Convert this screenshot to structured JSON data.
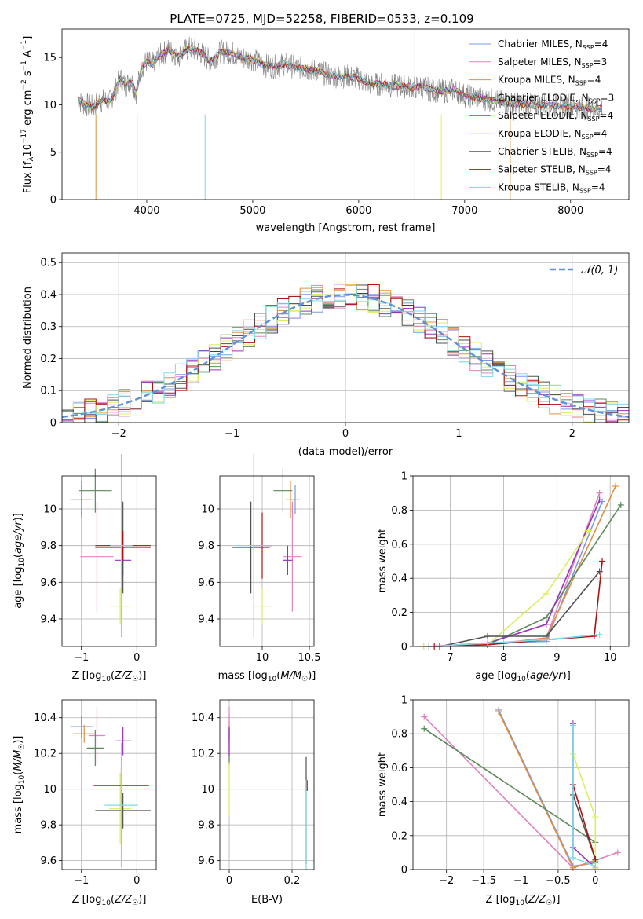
{
  "figure_title": "PLATE=0725, MJD=52258, FIBERID=0533, z=0.109",
  "chart_data": [
    {
      "id": "spectrum",
      "type": "line",
      "title": "PLATE=0725, MJD=52258, FIBERID=0533, z=0.109",
      "xlabel": "wavelength [Angstrom, rest frame]",
      "ylabel": "Flux [f_λ 10^-17 erg cm^-2 s^-1 A^-1]",
      "xlim": [
        3200,
        8550
      ],
      "ylim": [
        0,
        18
      ],
      "xticks": [
        4000,
        5000,
        6000,
        7000,
        8000
      ],
      "yticks": [
        0,
        5,
        10,
        15
      ],
      "grid": false,
      "legend_position": "top-right",
      "observed": {
        "color": "#808080",
        "points": [
          [
            3350,
            10.5
          ],
          [
            3420,
            10.0
          ],
          [
            3500,
            9.8
          ],
          [
            3550,
            10.4
          ],
          [
            3600,
            10.5
          ],
          [
            3650,
            10.3
          ],
          [
            3700,
            11.5
          ],
          [
            3750,
            12.8
          ],
          [
            3800,
            12.0
          ],
          [
            3850,
            12.7
          ],
          [
            3900,
            11.2
          ],
          [
            3950,
            14.0
          ],
          [
            4000,
            14.6
          ],
          [
            4050,
            14.2
          ],
          [
            4100,
            15.0
          ],
          [
            4200,
            15.8
          ],
          [
            4300,
            15.2
          ],
          [
            4400,
            16.0
          ],
          [
            4500,
            15.6
          ],
          [
            4600,
            14.6
          ],
          [
            4700,
            15.6
          ],
          [
            4800,
            15.5
          ],
          [
            4900,
            15.0
          ],
          [
            5000,
            14.8
          ],
          [
            5100,
            14.2
          ],
          [
            5200,
            14.0
          ],
          [
            5300,
            14.3
          ],
          [
            5400,
            14.0
          ],
          [
            5500,
            13.8
          ],
          [
            5600,
            13.6
          ],
          [
            5700,
            13.2
          ],
          [
            5800,
            13.0
          ],
          [
            5900,
            13.0
          ],
          [
            6000,
            12.8
          ],
          [
            6100,
            12.2
          ],
          [
            6200,
            12.2
          ],
          [
            6300,
            12.0
          ],
          [
            6400,
            12.0
          ],
          [
            6500,
            11.8
          ],
          [
            6600,
            11.9
          ],
          [
            6700,
            11.5
          ],
          [
            6800,
            11.4
          ],
          [
            6900,
            11.6
          ],
          [
            7000,
            11.0
          ],
          [
            7100,
            10.8
          ],
          [
            7200,
            10.6
          ],
          [
            7300,
            10.4
          ],
          [
            7400,
            10.2
          ],
          [
            7500,
            10.1
          ],
          [
            7600,
            10.0
          ],
          [
            7700,
            9.9
          ],
          [
            7800,
            10.0
          ],
          [
            7900,
            9.8
          ],
          [
            8000,
            9.9
          ],
          [
            8100,
            9.7
          ],
          [
            8200,
            9.6
          ],
          [
            8300,
            9.6
          ]
        ]
      },
      "model_colors": [
        "#7b99e0",
        "#e083c0",
        "#e09040",
        "#5c8a5c",
        "#9b30c0",
        "#d8f060",
        "#505050",
        "#b01010",
        "#80d8e8"
      ],
      "legend": [
        "Chabrier MILES, N_SSP=4",
        "Salpeter MILES, N_SSP=3",
        "Kroupa MILES, N_SSP=4",
        "Chabrier ELODIE, N_SSP=3",
        "Salpeter ELODIE, N_SSP=4",
        "Kroupa ELODIE, N_SSP=4",
        "Chabrier STELIB, N_SSP=4",
        "Salpeter STELIB, N_SSP=4",
        "Kroupa STELIB, N_SSP=4"
      ]
    },
    {
      "id": "residuals",
      "type": "bar",
      "xlabel": "(data-model)/error",
      "ylabel": "Normed distribution",
      "xlim": [
        -2.5,
        2.5
      ],
      "ylim": [
        0,
        0.53
      ],
      "xticks": [
        -2,
        -1,
        0,
        1,
        2
      ],
      "yticks": [
        0.0,
        0.1,
        0.2,
        0.3,
        0.4,
        0.5
      ],
      "grid": true,
      "legend_position": "top-right",
      "legend": [
        "N(0, 1)"
      ],
      "gaussian": {
        "mean": 0,
        "sigma": 1,
        "color": "#6090d8"
      },
      "bin_width": 0.1
    },
    {
      "id": "age-Z",
      "type": "scatter",
      "xlabel": "Z [log10(Z/Z☉)]",
      "ylabel": "age [log10(age/yr)]",
      "xlim": [
        -1.35,
        0.35
      ],
      "ylim": [
        9.25,
        10.18
      ],
      "xticks": [
        -1,
        0
      ],
      "yticks": [
        9.4,
        9.6,
        9.8,
        10.0
      ],
      "grid": true,
      "points": [
        {
          "x": -1.0,
          "y": 10.05,
          "xerr": 0.2,
          "yerr": 0.08,
          "color": "#7b99e0"
        },
        {
          "x": -0.72,
          "y": 9.74,
          "xerr": 0.3,
          "yerr": 0.3,
          "color": "#e083c0"
        },
        {
          "x": -1.0,
          "y": 10.05,
          "xerr": 0.15,
          "yerr": 0.1,
          "color": "#e09040"
        },
        {
          "x": -0.75,
          "y": 10.1,
          "xerr": 0.3,
          "yerr": 0.12,
          "color": "#5c8a5c"
        },
        {
          "x": -0.25,
          "y": 9.72,
          "xerr": 0.15,
          "yerr": 0.08,
          "color": "#9b30c0"
        },
        {
          "x": -0.3,
          "y": 9.47,
          "xerr": 0.2,
          "yerr": 0.1,
          "color": "#d8f060"
        },
        {
          "x": -0.25,
          "y": 9.79,
          "xerr": 0.5,
          "yerr": 0.25,
          "color": "#505050"
        },
        {
          "x": -0.25,
          "y": 9.8,
          "xerr": 0.5,
          "yerr": 0.08,
          "color": "#b01010"
        },
        {
          "x": -0.28,
          "y": 9.8,
          "xerr": 0.2,
          "yerr": 0.5,
          "color": "#80d8e8"
        }
      ]
    },
    {
      "id": "age-mass",
      "type": "scatter",
      "xlabel": "mass [log10(M/M☉)]",
      "ylabel": "",
      "xlim": [
        9.55,
        10.55
      ],
      "ylim": [
        9.25,
        10.18
      ],
      "xticks": [
        10.0,
        10.5
      ],
      "yticks": [
        9.4,
        9.6,
        9.8,
        10.0
      ],
      "grid": true,
      "points": [
        {
          "x": 10.35,
          "y": 10.05,
          "xerr": 0.05,
          "yerr": 0.08,
          "color": "#7b99e0"
        },
        {
          "x": 10.32,
          "y": 9.74,
          "xerr": 0.1,
          "yerr": 0.3,
          "color": "#e083c0"
        },
        {
          "x": 10.3,
          "y": 10.05,
          "xerr": 0.05,
          "yerr": 0.1,
          "color": "#e09040"
        },
        {
          "x": 10.22,
          "y": 10.1,
          "xerr": 0.1,
          "yerr": 0.12,
          "color": "#5c8a5c"
        },
        {
          "x": 10.27,
          "y": 9.72,
          "xerr": 0.05,
          "yerr": 0.08,
          "color": "#9b30c0"
        },
        {
          "x": 10.0,
          "y": 9.47,
          "xerr": 0.1,
          "yerr": 0.1,
          "color": "#d8f060"
        },
        {
          "x": 9.88,
          "y": 9.79,
          "xerr": 0.2,
          "yerr": 0.25,
          "color": "#505050"
        },
        {
          "x": 10.0,
          "y": 9.8,
          "xerr": 0.1,
          "yerr": 0.18,
          "color": "#b01010"
        },
        {
          "x": 9.91,
          "y": 9.8,
          "xerr": 0.2,
          "yerr": 0.5,
          "color": "#80d8e8"
        }
      ]
    },
    {
      "id": "weight-age",
      "type": "line",
      "xlabel": "age log10(age/yr)",
      "ylabel": "mass weight",
      "xlim": [
        6.3,
        10.35
      ],
      "ylim": [
        0,
        1.0
      ],
      "xticks": [
        7,
        8,
        9,
        10
      ],
      "yticks": [
        0.0,
        0.2,
        0.4,
        0.6,
        0.8,
        1.0
      ],
      "grid": true,
      "series": [
        {
          "color": "#7b99e0",
          "points": [
            [
              6.6,
              0.0
            ],
            [
              7.7,
              0.02
            ],
            [
              8.8,
              0.03
            ],
            [
              9.85,
              0.85
            ]
          ]
        },
        {
          "color": "#e083c0",
          "points": [
            [
              7.7,
              0.01
            ],
            [
              8.8,
              0.05
            ],
            [
              9.8,
              0.9
            ]
          ]
        },
        {
          "color": "#e09040",
          "points": [
            [
              6.5,
              0.0
            ],
            [
              7.7,
              0.01
            ],
            [
              8.8,
              0.05
            ],
            [
              10.1,
              0.94
            ]
          ]
        },
        {
          "color": "#5c8a5c",
          "points": [
            [
              7.7,
              0.01
            ],
            [
              8.8,
              0.17
            ],
            [
              10.2,
              0.83
            ]
          ]
        },
        {
          "color": "#9b30c0",
          "points": [
            [
              6.6,
              0.0
            ],
            [
              7.7,
              0.02
            ],
            [
              8.8,
              0.13
            ],
            [
              9.8,
              0.86
            ]
          ]
        },
        {
          "color": "#d8f060",
          "points": [
            [
              6.5,
              0.0
            ],
            [
              7.7,
              0.01
            ],
            [
              8.8,
              0.31
            ],
            [
              9.6,
              0.68
            ]
          ]
        },
        {
          "color": "#505050",
          "points": [
            [
              6.8,
              0.0
            ],
            [
              7.7,
              0.06
            ],
            [
              8.8,
              0.06
            ],
            [
              9.8,
              0.44
            ]
          ]
        },
        {
          "color": "#b01010",
          "points": [
            [
              6.7,
              0.0
            ],
            [
              7.7,
              0.01
            ],
            [
              8.8,
              0.04
            ],
            [
              9.7,
              0.06
            ],
            [
              9.85,
              0.5
            ]
          ]
        },
        {
          "color": "#80d8e8",
          "points": [
            [
              6.6,
              0.0
            ],
            [
              7.7,
              0.02
            ],
            [
              8.8,
              0.04
            ],
            [
              9.8,
              0.07
            ]
          ]
        }
      ]
    },
    {
      "id": "mass-Z",
      "type": "scatter",
      "xlabel": "Z [log10(Z/Z☉)]",
      "ylabel": "mass [log10(M/M☉)]",
      "xlim": [
        -1.35,
        0.35
      ],
      "ylim": [
        9.55,
        10.5
      ],
      "xticks": [
        -1,
        0
      ],
      "yticks": [
        9.6,
        9.8,
        10.0,
        10.2,
        10.4
      ],
      "grid": true,
      "points": [
        {
          "x": -1.0,
          "y": 10.35,
          "xerr": 0.2,
          "yerr": 0.06,
          "color": "#7b99e0"
        },
        {
          "x": -0.72,
          "y": 10.3,
          "xerr": 0.15,
          "yerr": 0.16,
          "color": "#e083c0"
        },
        {
          "x": -0.95,
          "y": 10.31,
          "xerr": 0.2,
          "yerr": 0.05,
          "color": "#e09040"
        },
        {
          "x": -0.75,
          "y": 10.23,
          "xerr": 0.15,
          "yerr": 0.1,
          "color": "#5c8a5c"
        },
        {
          "x": -0.25,
          "y": 10.27,
          "xerr": 0.15,
          "yerr": 0.08,
          "color": "#9b30c0"
        },
        {
          "x": -0.3,
          "y": 9.89,
          "xerr": 0.2,
          "yerr": 0.2,
          "color": "#d8f060"
        },
        {
          "x": -0.25,
          "y": 9.88,
          "xerr": 0.5,
          "yerr": 0.1,
          "color": "#505050"
        },
        {
          "x": -0.28,
          "y": 10.02,
          "xerr": 0.5,
          "yerr": 0.1,
          "color": "#b01010"
        },
        {
          "x": -0.28,
          "y": 9.91,
          "xerr": 0.3,
          "yerr": 0.35,
          "color": "#80d8e8"
        }
      ]
    },
    {
      "id": "mass-ebv",
      "type": "scatter",
      "xlabel": "E(B-V)",
      "ylabel": "",
      "xlim": [
        -0.03,
        0.27
      ],
      "ylim": [
        9.55,
        10.5
      ],
      "xticks": [
        0.0,
        0.2
      ],
      "yticks": [
        9.6,
        9.8,
        10.0,
        10.2,
        10.4
      ],
      "grid": true,
      "points": [
        {
          "x": 0.0,
          "y": 10.35,
          "xerr": 0.0,
          "yerr": 0.06,
          "color": "#7b99e0"
        },
        {
          "x": 0.0,
          "y": 10.3,
          "xerr": 0.0,
          "yerr": 0.16,
          "color": "#e083c0"
        },
        {
          "x": 0.0,
          "y": 10.31,
          "xerr": 0.0,
          "yerr": 0.05,
          "color": "#e09040"
        },
        {
          "x": 0.0,
          "y": 10.23,
          "xerr": 0.0,
          "yerr": 0.1,
          "color": "#5c8a5c"
        },
        {
          "x": 0.0,
          "y": 10.27,
          "xerr": 0.0,
          "yerr": 0.08,
          "color": "#9b30c0"
        },
        {
          "x": 0.0,
          "y": 10.0,
          "xerr": 0.0,
          "yerr": 0.15,
          "color": "#d8f060"
        },
        {
          "x": 0.245,
          "y": 9.88,
          "xerr": 0.0,
          "yerr": 0.3,
          "color": "#505050"
        },
        {
          "x": 0.248,
          "y": 10.02,
          "xerr": 0.0,
          "yerr": 0.03,
          "color": "#b01010"
        },
        {
          "x": 0.245,
          "y": 9.8,
          "xerr": 0.0,
          "yerr": 0.25,
          "color": "#80d8e8"
        }
      ]
    },
    {
      "id": "weight-Z",
      "type": "line",
      "xlabel": "Z [log10(Z/Z☉)]",
      "ylabel": "mass weight",
      "xlim": [
        -2.45,
        0.45
      ],
      "ylim": [
        0,
        1.0
      ],
      "xticks": [
        -2.0,
        -1.5,
        -1.0,
        -0.5,
        0.0
      ],
      "yticks": [
        0.0,
        0.2,
        0.4,
        0.6,
        0.8,
        1.0
      ],
      "grid": true,
      "series": [
        {
          "color": "#7b99e0",
          "points": [
            [
              -1.3,
              0.94
            ],
            [
              -0.3,
              0.02
            ],
            [
              0.0,
              0.04
            ]
          ]
        },
        {
          "color": "#e083c0",
          "points": [
            [
              -2.3,
              0.9
            ],
            [
              -0.3,
              0.01
            ],
            [
              0.3,
              0.1
            ]
          ]
        },
        {
          "color": "#e09040",
          "points": [
            [
              -1.3,
              0.93
            ],
            [
              -0.3,
              0.01
            ],
            [
              0.0,
              0.05
            ]
          ]
        },
        {
          "color": "#5c8a5c",
          "points": [
            [
              -2.3,
              0.83
            ],
            [
              0.0,
              0.16
            ]
          ]
        },
        {
          "color": "#9b30c0",
          "points": [
            [
              -0.3,
              0.86
            ],
            [
              -0.3,
              0.13
            ],
            [
              0.0,
              0.01
            ]
          ]
        },
        {
          "color": "#d8f060",
          "points": [
            [
              -0.3,
              0.68
            ],
            [
              0.0,
              0.31
            ],
            [
              0.0,
              0.01
            ]
          ]
        },
        {
          "color": "#505050",
          "points": [
            [
              -0.3,
              0.44
            ],
            [
              0.0,
              0.06
            ]
          ]
        },
        {
          "color": "#b01010",
          "points": [
            [
              -0.3,
              0.5
            ],
            [
              0.0,
              0.06
            ]
          ]
        },
        {
          "color": "#80d8e8",
          "points": [
            [
              -0.3,
              0.85
            ],
            [
              -0.3,
              0.07
            ],
            [
              0.0,
              0.02
            ]
          ]
        }
      ]
    }
  ]
}
